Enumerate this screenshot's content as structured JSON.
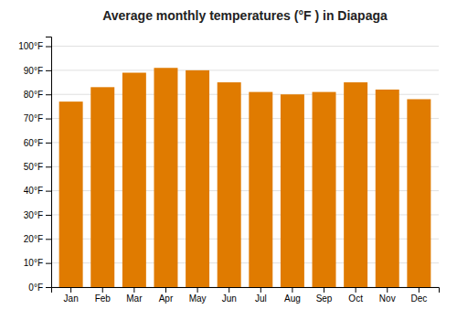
{
  "chart_data": {
    "type": "bar",
    "title": "Average monthly temperatures (°F ) in Diapaga",
    "categories": [
      "Jan",
      "Feb",
      "Mar",
      "Apr",
      "May",
      "Jun",
      "Jul",
      "Aug",
      "Sep",
      "Oct",
      "Nov",
      "Dec"
    ],
    "values": [
      77,
      83,
      89,
      91,
      90,
      85,
      81,
      80,
      81,
      85,
      82,
      78
    ],
    "color": "#E07B00",
    "ylim": [
      0,
      104
    ],
    "yticks": [
      {
        "value": 0,
        "label": "0°F"
      },
      {
        "value": 10,
        "label": "10°F"
      },
      {
        "value": 20,
        "label": "20°F"
      },
      {
        "value": 30,
        "label": "30°F"
      },
      {
        "value": 40,
        "label": "40°F"
      },
      {
        "value": 50,
        "label": "50°F"
      },
      {
        "value": 60,
        "label": "60°F"
      },
      {
        "value": 70,
        "label": "70°F"
      },
      {
        "value": 80,
        "label": "80°F"
      },
      {
        "value": 90,
        "label": "90°F"
      },
      {
        "value": 100,
        "label": "100°F"
      }
    ],
    "grid": true
  }
}
